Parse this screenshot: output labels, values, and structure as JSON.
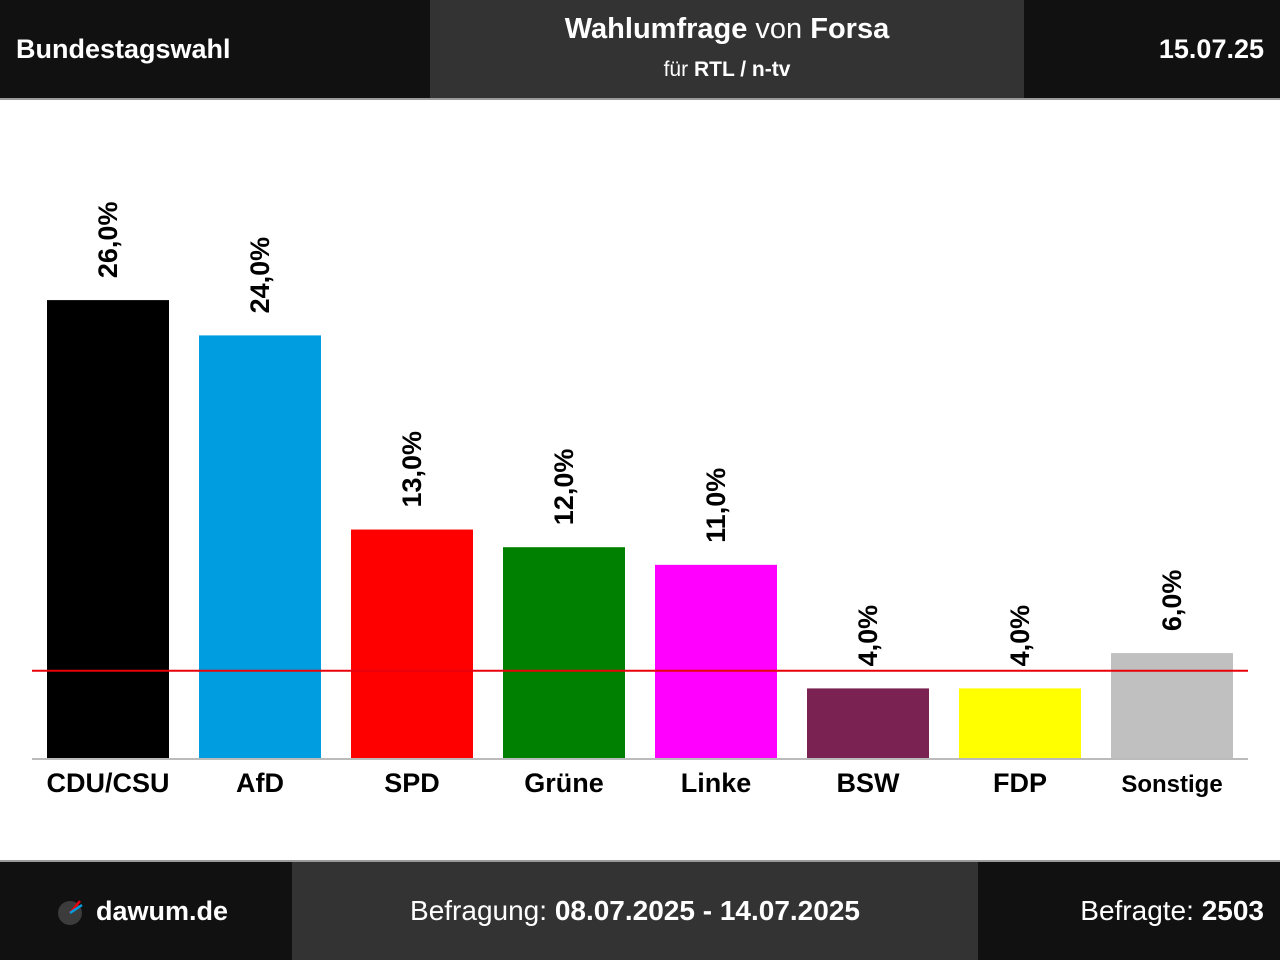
{
  "header": {
    "left_title": "Bundestagswahl",
    "poll_word": "Wahlumfrage",
    "von_word": "von",
    "institute": "Forsa",
    "fuer_word": "für",
    "client": "RTL / n-tv",
    "date": "15.07.25"
  },
  "footer": {
    "site": "dawum.de",
    "survey_label": "Befragung:",
    "survey_period": "08.07.2025 - 14.07.2025",
    "respondents_label": "Befragte:",
    "respondents_count": "2503"
  },
  "colors": {
    "threshold_line": "#e8000b",
    "axis_line": "#bbbbbb"
  },
  "chart_data": {
    "type": "bar",
    "categories": [
      "CDU/CSU",
      "AfD",
      "SPD",
      "Grüne",
      "Linke",
      "BSW",
      "FDP",
      "Sonstige"
    ],
    "values": [
      26.0,
      24.0,
      13.0,
      12.0,
      11.0,
      4.0,
      4.0,
      6.0
    ],
    "value_labels": [
      "26,0%",
      "24,0%",
      "13,0%",
      "12,0%",
      "11,0%",
      "4,0%",
      "4,0%",
      "6,0%"
    ],
    "colors": [
      "#000000",
      "#009ee0",
      "#ff0000",
      "#008000",
      "#ff00ff",
      "#7a2352",
      "#ffff00",
      "#c0c0c0"
    ],
    "threshold": 5.0,
    "ylim": [
      0,
      30
    ],
    "grid": false,
    "title": "",
    "xlabel": "",
    "ylabel": ""
  }
}
